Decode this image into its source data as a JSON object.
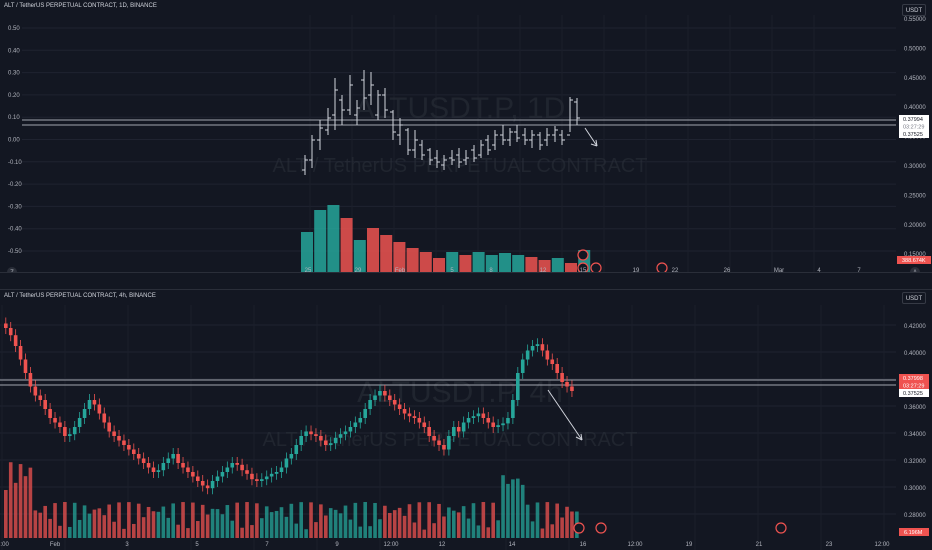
{
  "top_chart": {
    "title": "ALT / TetherUS PERPETUAL CONTRACT, 1D, BINANCE",
    "currency": "USDT",
    "watermark_symbol": "ALTUSDT.P, 1D",
    "watermark_name": "ALT / TetherUS PERPETUAL CONTRACT",
    "left_scale": [
      "0.50",
      "0.40",
      "0.30",
      "0.20",
      "0.10",
      "0.00",
      "-0.10",
      "-0.20",
      "-0.30",
      "-0.40",
      "-0.50"
    ],
    "right_scale": [
      "0.55000",
      "0.50000",
      "0.45000",
      "0.40000",
      "0.35000",
      "0.30000",
      "0.25000",
      "0.20000",
      "0.15000"
    ],
    "x_labels": [
      "25",
      "29",
      "Feb",
      "5",
      "8",
      "12",
      "15",
      "19",
      "22",
      "26",
      "Mar",
      "4",
      "7"
    ],
    "last_price": "0.37994",
    "countdown": "03:27:29",
    "line_price": "0.37525",
    "volume_tag": "388.674K",
    "bottom_left_icon": "Z",
    "bottom_right_icon": "A",
    "up_color": "#26a69a",
    "down_color": "#ef5350"
  },
  "bottom_chart": {
    "title": "ALT / TetherUS PERPETUAL CONTRACT, 4h, BINANCE",
    "currency": "USDT",
    "watermark_symbol": "ALTUSDT.P, 4h",
    "watermark_name": "ALT / TetherUS PERPETUAL CONTRACT",
    "right_scale": [
      "0.42000",
      "0.40000",
      "0.38000",
      "0.36000",
      "0.34000",
      "0.32000",
      "0.30000",
      "0.28000"
    ],
    "x_labels": [
      "2:00",
      "Feb",
      "3",
      "5",
      "7",
      "9",
      "12:00",
      "12",
      "14",
      "16",
      "12:00",
      "19",
      "21",
      "23",
      "12:00"
    ],
    "last_price": "0.37998",
    "countdown": "03:27:29",
    "line_price": "0.37525",
    "volume_tag": "6.196M",
    "up_color": "#26a69a",
    "down_color": "#ef5350"
  }
}
